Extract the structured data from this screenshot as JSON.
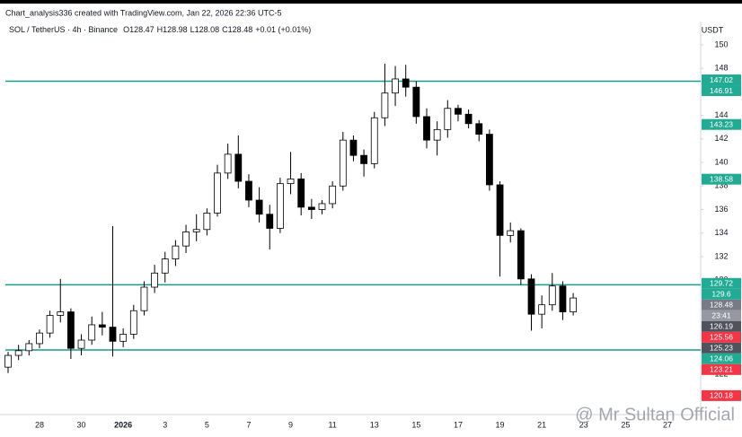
{
  "chart_data": {
    "type": "candlestick",
    "credit": "Chart_analysis336 created with TradingView.com, Jan 22, 2026 22:36 UTC-5",
    "title": "SOL / TetherUS · 4h · Binance",
    "ohlc_text": [
      "O128.47",
      "H128.98",
      "L128.08",
      "C128.48",
      "+0.01 (+0.01%)"
    ],
    "currency": "USDT",
    "watermark": "@ Mr Sultan Official",
    "categories": [
      null,
      null,
      null,
      "28",
      null,
      null,
      null,
      "30",
      null,
      null,
      null,
      "2026",
      null,
      null,
      null,
      "3",
      null,
      null,
      null,
      "5",
      null,
      null,
      null,
      "7",
      null,
      null,
      null,
      "9",
      null,
      null,
      null,
      "11",
      null,
      null,
      null,
      "13",
      null,
      null,
      null,
      "15",
      null,
      null,
      null,
      "17",
      null,
      null,
      null,
      "19",
      null,
      null,
      null,
      "21",
      null,
      null,
      null,
      "23",
      null,
      null,
      null,
      "25",
      null,
      null,
      null,
      "27",
      null,
      null,
      null
    ],
    "open": [
      122.6,
      123.6,
      124.0,
      124.6,
      125.5,
      127.0,
      127.3,
      124.2,
      124.9,
      126.2,
      126.0,
      124.8,
      125.4,
      127.4,
      129.4,
      130.6,
      131.8,
      132.9,
      134.1,
      134.3,
      135.7,
      139.1,
      140.7,
      138.4,
      136.8,
      135.6,
      134.4,
      138.2,
      138.6,
      136.2,
      136.0,
      136.5,
      138.0,
      141.9,
      140.6,
      139.9,
      143.8,
      145.9,
      147.1,
      146.4,
      143.9,
      141.9,
      142.8,
      144.6,
      144.1,
      143.3,
      142.4,
      138.1,
      133.8,
      134.2,
      130.1,
      127.1,
      127.9,
      129.5,
      127.3,
      null,
      null,
      null,
      null,
      null,
      null,
      null,
      null,
      null,
      null,
      null,
      null
    ],
    "high": [
      123.9,
      124.5,
      124.9,
      125.8,
      127.4,
      130.1,
      127.6,
      125.4,
      126.9,
      127.3,
      134.6,
      125.9,
      127.9,
      129.9,
      131.3,
      132.4,
      133.4,
      134.7,
      135.6,
      136.1,
      139.8,
      141.6,
      142.3,
      139.0,
      137.9,
      136.4,
      138.7,
      140.9,
      139.1,
      136.9,
      136.8,
      138.4,
      142.6,
      142.3,
      141.1,
      144.3,
      148.4,
      148.2,
      148.3,
      146.9,
      144.6,
      143.5,
      145.3,
      144.9,
      144.5,
      143.6,
      142.8,
      138.4,
      134.9,
      134.4,
      130.5,
      128.7,
      130.6,
      129.9,
      128.9,
      null,
      null,
      null,
      null,
      null,
      null,
      null,
      null,
      null,
      null,
      null,
      null
    ],
    "low": [
      122.1,
      123.2,
      123.6,
      124.2,
      125.1,
      126.4,
      123.3,
      123.6,
      124.5,
      125.3,
      123.5,
      124.3,
      125.0,
      127.0,
      128.9,
      129.8,
      131.2,
      132.3,
      133.3,
      133.8,
      135.4,
      138.6,
      137.8,
      136.2,
      134.9,
      132.6,
      134.0,
      137.3,
      135.5,
      135.2,
      135.6,
      136.1,
      137.6,
      140.1,
      138.8,
      139.5,
      143.1,
      144.8,
      145.6,
      143.3,
      141.2,
      140.6,
      142.1,
      143.5,
      142.9,
      141.8,
      137.6,
      130.3,
      133.2,
      129.6,
      125.7,
      125.9,
      127.4,
      126.6,
      127.0,
      null,
      null,
      null,
      null,
      null,
      null,
      null,
      null,
      null,
      null,
      null,
      null
    ],
    "close": [
      123.6,
      124.0,
      124.6,
      125.5,
      127.0,
      127.3,
      124.2,
      124.9,
      126.2,
      126.0,
      124.8,
      125.4,
      127.4,
      129.4,
      130.6,
      131.8,
      132.9,
      134.1,
      134.3,
      135.7,
      139.1,
      140.7,
      138.4,
      136.8,
      135.6,
      134.4,
      138.2,
      138.6,
      136.2,
      136.0,
      136.5,
      138.0,
      141.9,
      140.6,
      139.9,
      143.8,
      145.9,
      147.1,
      146.4,
      143.9,
      141.9,
      142.8,
      144.6,
      144.1,
      143.3,
      142.4,
      138.1,
      133.8,
      134.2,
      130.1,
      127.1,
      127.9,
      129.5,
      127.3,
      128.48,
      null,
      null,
      null,
      null,
      null,
      null,
      null,
      null,
      null,
      null,
      null,
      null
    ],
    "up_color": "#ffffff",
    "down_color": "#000000",
    "wick_color": "#000000",
    "ylim": [
      118.57,
      151.98
    ],
    "yticks": [
      122,
      124,
      126,
      128,
      130,
      132,
      134,
      136,
      138,
      140,
      142,
      144,
      146,
      148,
      150
    ],
    "levels": [
      146.91,
      129.6,
      124.06
    ],
    "level_color": "#1a9a8a",
    "price_tags": [
      {
        "value": 147.02,
        "color": "#22ab94"
      },
      {
        "value": 146.91,
        "color": "#22ab94"
      },
      {
        "value": 143.23,
        "color": "#22ab94"
      },
      {
        "value": 138.58,
        "color": "#22ab94"
      },
      {
        "value": 129.72,
        "color": "#22ab94"
      },
      {
        "value": 129.6,
        "color": "#22ab94"
      },
      {
        "value": 128.48,
        "color": "#787b86"
      },
      {
        "value": 126.19,
        "color": "#50535e"
      },
      {
        "value": 125.56,
        "color": "#f23645"
      },
      {
        "value": 125.23,
        "color": "#50535e"
      },
      {
        "value": 124.06,
        "color": "#22ab94"
      },
      {
        "value": 123.21,
        "color": "#f23645"
      },
      {
        "value": 120.18,
        "color": "#f23645"
      }
    ],
    "countdown": "23:41"
  }
}
